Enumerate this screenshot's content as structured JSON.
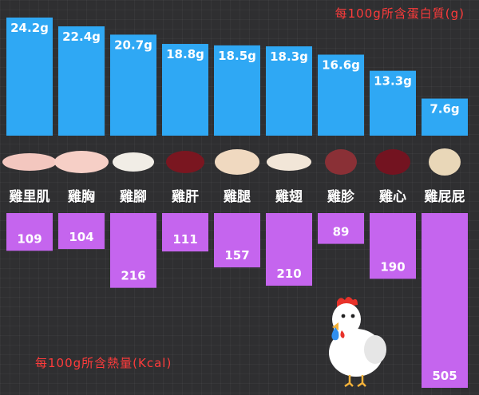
{
  "chart_data": [
    {
      "type": "bar",
      "title": "每100g所含蛋白質(g)",
      "categories": [
        "雞里肌",
        "雞胸",
        "雞腳",
        "雞肝",
        "雞腿",
        "雞翅",
        "雞胗",
        "雞心",
        "雞屁屁"
      ],
      "values": [
        24.2,
        22.4,
        20.7,
        18.8,
        18.5,
        18.3,
        16.6,
        13.3,
        7.6
      ],
      "value_labels": [
        "24.2g",
        "22.4g",
        "20.7g",
        "18.8g",
        "18.5g",
        "18.3g",
        "16.6g",
        "13.3g",
        "7.6g"
      ],
      "unit": "g",
      "orientation": "bars grow upward",
      "ylim": [
        0,
        25
      ],
      "color": "#2fa8f4"
    },
    {
      "type": "bar",
      "title": "每100g所含熱量(Kcal)",
      "categories": [
        "雞里肌",
        "雞胸",
        "雞腳",
        "雞肝",
        "雞腿",
        "雞翅",
        "雞胗",
        "雞心",
        "雞屁屁"
      ],
      "values": [
        109,
        104,
        216,
        111,
        157,
        210,
        89,
        190,
        505
      ],
      "value_labels": [
        "109",
        "104",
        "216",
        "111",
        "157",
        "210",
        "89",
        "190",
        "505"
      ],
      "unit": "Kcal",
      "orientation": "bars grow downward",
      "color": "#c565ee"
    }
  ],
  "colors": {
    "background": "#2f2f31",
    "title": "#ff3b3b",
    "category_label": "#ffffff",
    "protein_bar": "#2fa8f4",
    "calorie_bar": "#c565ee",
    "value_text": "#ffffff"
  },
  "icons": [
    "chicken-thigh-meat",
    "chicken-breast",
    "chicken-foot",
    "chicken-liver",
    "chicken-drumstick",
    "chicken-wing",
    "chicken-gizzard",
    "chicken-heart",
    "chicken-tail",
    "crying-chicken-mascot"
  ]
}
